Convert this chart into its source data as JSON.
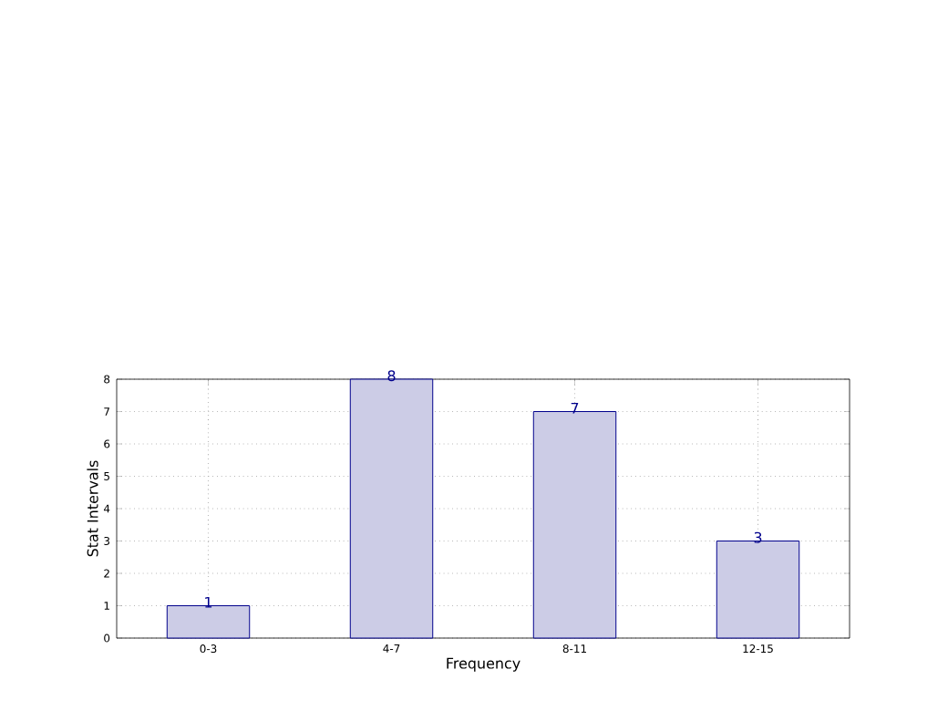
{
  "chart_data": {
    "type": "bar",
    "xlabel": "Frequency",
    "ylabel": "Stat Intervals",
    "categories": [
      "0-3",
      "4-7",
      "8-11",
      "12-15"
    ],
    "values": [
      1,
      8,
      7,
      3
    ],
    "color": "#cccce6",
    "ylim": [
      0,
      8
    ],
    "yticks": [
      0,
      1,
      2,
      3,
      4,
      5,
      6,
      7,
      8
    ],
    "grid": true,
    "data_labels": true
  }
}
